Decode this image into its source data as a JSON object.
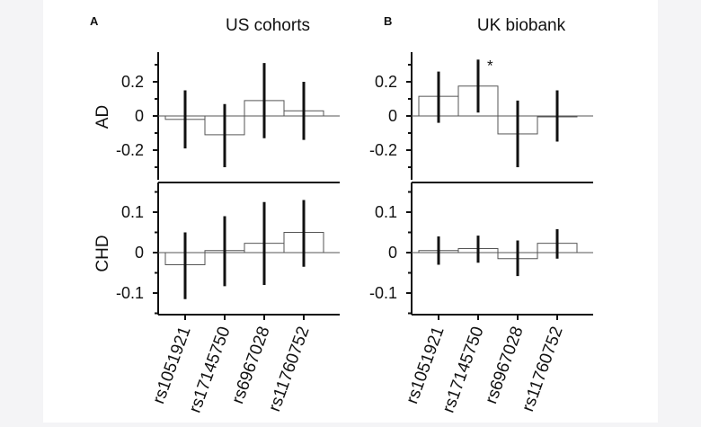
{
  "chart_data": {
    "type": "bar",
    "categories": [
      "rs1051921",
      "rs17145750",
      "rs6967028",
      "rs11760752"
    ],
    "panels": [
      {
        "letter": "A",
        "title": "US cohorts",
        "rows": [
          {
            "name": "AD",
            "ylim": [
              -0.3,
              0.35
            ],
            "yticks": [
              "0.2",
              "0",
              "-0.2"
            ],
            "values": [
              -0.02,
              -0.11,
              0.09,
              0.03
            ],
            "ci_low": [
              -0.19,
              -0.3,
              -0.13,
              -0.14
            ],
            "ci_high": [
              0.15,
              0.07,
              0.31,
              0.2
            ],
            "significance": [
              "",
              "",
              "",
              ""
            ]
          },
          {
            "name": "CHD",
            "ylim": [
              -0.15,
              0.17
            ],
            "yticks": [
              "0.1",
              "0",
              "-0.1"
            ],
            "values": [
              -0.03,
              0.005,
              0.023,
              0.05
            ],
            "ci_low": [
              -0.115,
              -0.083,
              -0.08,
              -0.035
            ],
            "ci_high": [
              0.05,
              0.09,
              0.125,
              0.13
            ],
            "significance": [
              "",
              "",
              "",
              ""
            ]
          }
        ]
      },
      {
        "letter": "B",
        "title": "UK biobank",
        "rows": [
          {
            "name": "AD",
            "ylim": [
              -0.3,
              0.35
            ],
            "yticks": [
              "0.2",
              "0",
              "-0.2"
            ],
            "values": [
              0.115,
              0.175,
              -0.105,
              0.0
            ],
            "ci_low": [
              -0.04,
              0.02,
              -0.3,
              -0.15
            ],
            "ci_high": [
              0.26,
              0.33,
              0.09,
              0.15
            ],
            "significance": [
              "",
              "*",
              "",
              ""
            ]
          },
          {
            "name": "CHD",
            "ylim": [
              -0.15,
              0.17
            ],
            "yticks": [
              "0.1",
              "0",
              "-0.1"
            ],
            "values": [
              0.005,
              0.01,
              -0.015,
              0.023
            ],
            "ci_low": [
              -0.03,
              -0.025,
              -0.058,
              -0.015
            ],
            "ci_high": [
              0.04,
              0.042,
              0.03,
              0.058
            ],
            "significance": [
              "",
              "",
              "",
              ""
            ]
          }
        ]
      }
    ]
  }
}
